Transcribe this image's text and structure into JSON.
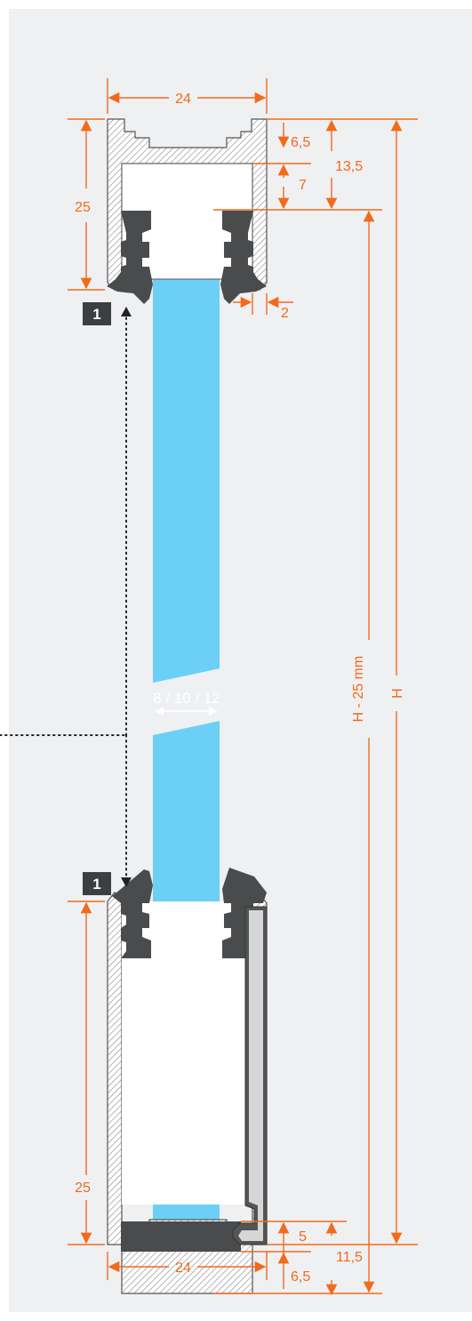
{
  "colors": {
    "background": "#eff0f2",
    "dimension": "#f26a1b",
    "glass": "#6ccff6",
    "profile_stroke": "#555555",
    "gasket": "#4a4b4d",
    "hatch": "#8f8f8f"
  },
  "dimensions": {
    "top_width": "24",
    "bottom_width": "24",
    "top_height": "25",
    "bottom_height": "25",
    "top_6_5": "6,5",
    "top_7": "7",
    "top_13_5": "13,5",
    "lip_2": "2",
    "bottom_5": "5",
    "bottom_6_5": "6,5",
    "bottom_11_5": "11,5",
    "glass_height": "H - 25 mm",
    "total_height": "H",
    "glass_thickness": "8 / 10 / 12"
  },
  "badges": {
    "top": "1",
    "bottom": "1"
  },
  "icons": [
    "arrowhead-icon",
    "hatch-pattern"
  ]
}
